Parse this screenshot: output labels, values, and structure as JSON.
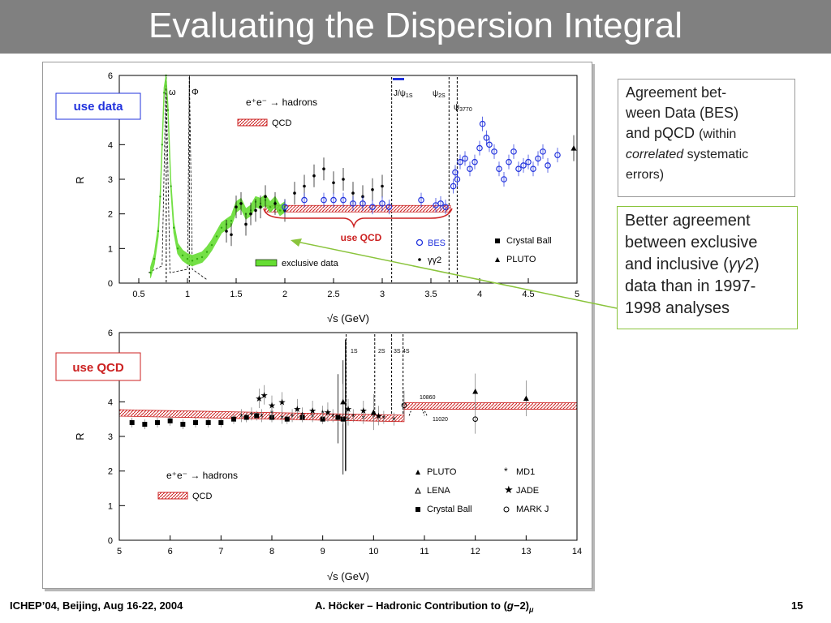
{
  "slide": {
    "title": "Evaluating the Dispersion Integral",
    "footer_left": "ICHEP’04, Beijing, Aug 16-22, 2004",
    "footer_center_prefix": "A. Höcker – Hadronic Contribution to (",
    "footer_center_g": "g",
    "footer_center_minus": "−2)",
    "footer_center_mu": "μ",
    "page_number": "15"
  },
  "notes": {
    "agreement_line1": "Agreement bet-",
    "agreement_line2": "ween Data (BES)",
    "agreement_line3": "and pQCD",
    "agreement_within": "(within",
    "agreement_correlated": "correlated",
    "agreement_systematic": "systematic",
    "agreement_errors": "errors)",
    "better_line1": "Better agreement",
    "better_line2": "between exclusive",
    "better_line3a": "and inclusive (",
    "better_gg": "γγ",
    "better_line3b": "2)",
    "better_line4": "data than in 1997-",
    "better_line5": "1998 analyses"
  },
  "colors": {
    "title_bar": "#808080",
    "qcd_band": "#cc2222",
    "exclusive": "#66dd33",
    "bes": "#2233dd",
    "arrow": "#8ac43c"
  },
  "chart_data": [
    {
      "type": "scatter",
      "ylabel": "R",
      "xlabel": "√s   (GeV)",
      "xlim": [
        0.3,
        5.0
      ],
      "ylim": [
        0,
        6
      ],
      "x_ticks": [
        "0.5",
        "1",
        "1.5",
        "2",
        "2.5",
        "3",
        "3.5",
        "4",
        "4.5",
        "5"
      ],
      "y_ticks": [
        "0",
        "1",
        "2",
        "3",
        "4",
        "5",
        "6"
      ],
      "label_box": "use data",
      "qcd_label": "use QCD",
      "process_label": "e⁺e⁻ → hadrons",
      "legend": {
        "qcd": "QCD",
        "exclusive": "exclusive data",
        "bes": "BES",
        "gg2": "γγ2",
        "crystal_ball": "Crystal Ball",
        "pluto": "PLUTO"
      },
      "resonances": [
        {
          "label": "ω",
          "x": 0.782
        },
        {
          "label": "Φ",
          "x": 1.019
        },
        {
          "label": "J/ψ",
          "sub": "1S",
          "x": 3.097
        },
        {
          "label": "ψ",
          "sub": "2S",
          "x": 3.686
        },
        {
          "label": "ψ",
          "sub": "3770",
          "x": 3.77
        }
      ],
      "qcd_band": {
        "x": [
          1.8,
          3.7
        ],
        "y": 2.15
      },
      "series": [
        {
          "name": "exclusive data",
          "x": [
            0.62,
            0.66,
            0.7,
            0.72,
            0.74,
            0.76,
            0.78,
            0.8,
            0.83,
            0.86,
            0.9,
            0.95,
            1.0,
            1.05,
            1.1,
            1.15,
            1.2,
            1.25,
            1.3,
            1.35,
            1.4,
            1.45,
            1.5,
            1.55,
            1.6,
            1.65,
            1.7,
            1.75,
            1.8,
            1.85,
            1.9,
            1.95,
            2.0
          ],
          "values": [
            0.3,
            0.7,
            1.5,
            2.5,
            4.0,
            5.5,
            6.0,
            5.0,
            2.8,
            1.6,
            1.0,
            0.8,
            0.7,
            0.65,
            0.7,
            0.75,
            0.9,
            1.1,
            1.35,
            1.6,
            1.7,
            1.8,
            2.2,
            2.3,
            2.0,
            2.1,
            2.35,
            2.3,
            2.4,
            2.2,
            2.35,
            2.1,
            2.2
          ]
        },
        {
          "name": "BES",
          "x": [
            2.0,
            2.2,
            2.4,
            2.5,
            2.6,
            2.7,
            2.8,
            2.9,
            3.0,
            3.07,
            3.4,
            3.55,
            3.6,
            3.65,
            3.73,
            3.75,
            3.77,
            3.8,
            3.85,
            3.9,
            3.95,
            4.0,
            4.03,
            4.07,
            4.1,
            4.15,
            4.2,
            4.25,
            4.3,
            4.35,
            4.4,
            4.45,
            4.5,
            4.55,
            4.6,
            4.65,
            4.7,
            4.8
          ],
          "values": [
            2.2,
            2.4,
            2.4,
            2.4,
            2.4,
            2.3,
            2.3,
            2.2,
            2.3,
            2.2,
            2.4,
            2.25,
            2.3,
            2.2,
            2.8,
            3.2,
            3.0,
            3.5,
            3.6,
            3.3,
            3.5,
            3.9,
            4.6,
            4.2,
            4.0,
            3.8,
            3.3,
            3.0,
            3.5,
            3.8,
            3.3,
            3.4,
            3.5,
            3.3,
            3.6,
            3.8,
            3.4,
            3.7
          ]
        },
        {
          "name": "γγ2",
          "x": [
            1.4,
            1.45,
            1.5,
            1.55,
            1.6,
            1.65,
            1.7,
            1.75,
            1.8,
            1.9,
            2.0,
            2.1,
            2.2,
            2.3,
            2.4,
            2.5,
            2.6,
            2.7,
            2.8,
            2.9,
            3.0
          ],
          "values": [
            1.5,
            1.4,
            2.2,
            2.3,
            1.7,
            2.0,
            2.1,
            2.2,
            2.5,
            2.3,
            2.1,
            2.6,
            2.8,
            3.1,
            3.3,
            2.9,
            3.0,
            2.6,
            2.5,
            2.7,
            2.8
          ]
        },
        {
          "name": "PLUTO",
          "x": [
            5.0
          ],
          "values": [
            3.9
          ]
        }
      ]
    },
    {
      "type": "scatter",
      "ylabel": "R",
      "xlabel": "√s   (GeV)",
      "xlim": [
        5,
        14
      ],
      "ylim": [
        0,
        6
      ],
      "x_ticks": [
        "5",
        "6",
        "7",
        "8",
        "9",
        "10",
        "11",
        "12",
        "13",
        "14"
      ],
      "y_ticks": [
        "0",
        "1",
        "2",
        "3",
        "4",
        "5",
        "6"
      ],
      "label_box": "use QCD",
      "process_label": "e⁺e⁻ → hadrons",
      "legend": {
        "qcd": "QCD",
        "pluto": "PLUTO",
        "md1": "MD1",
        "lena": "LENA",
        "jade": "JADE",
        "crystal_ball": "Crystal Ball",
        "markj": "MARK J"
      },
      "resonances": [
        {
          "label": "1S",
          "x": 9.46
        },
        {
          "label": "2S",
          "x": 10.023
        },
        {
          "label": "3S",
          "x": 10.355
        },
        {
          "label": "4S",
          "x": 10.58
        },
        {
          "label": "10860",
          "x": 10.86
        },
        {
          "label": "11020",
          "x": 11.02
        }
      ],
      "qcd_band": {
        "segments": [
          {
            "x": [
              5.0,
              10.6
            ],
            "y_start": 3.68,
            "y_end": 3.52
          },
          {
            "x": [
              10.6,
              14.0
            ],
            "y_start": 3.88,
            "y_end": 3.88
          }
        ]
      },
      "series": [
        {
          "name": "Crystal Ball",
          "x": [
            5.25,
            5.5,
            5.75,
            6.0,
            6.25,
            6.5,
            6.75,
            7.0,
            7.25,
            7.5,
            7.7,
            8.0,
            8.3,
            8.6,
            9.0,
            9.3,
            9.4
          ],
          "values": [
            3.4,
            3.35,
            3.4,
            3.45,
            3.35,
            3.4,
            3.4,
            3.4,
            3.5,
            3.55,
            3.6,
            3.55,
            3.5,
            3.55,
            3.5,
            3.55,
            3.5
          ]
        },
        {
          "name": "MD1",
          "x": [
            7.4,
            7.6,
            7.8,
            8.0,
            8.2,
            8.4,
            8.6,
            8.8,
            9.0,
            9.2,
            9.5,
            9.6,
            9.8,
            10.0,
            10.2,
            10.4
          ],
          "values": [
            3.6,
            3.65,
            3.6,
            3.7,
            3.55,
            3.6,
            3.65,
            3.6,
            3.7,
            3.6,
            3.5,
            3.6,
            3.55,
            3.6,
            3.55,
            3.5
          ]
        },
        {
          "name": "JADE",
          "x": [
            7.75,
            7.85,
            8.0,
            8.2,
            8.5,
            8.8,
            9.1,
            9.5,
            9.8,
            10.1
          ],
          "values": [
            4.1,
            4.2,
            3.9,
            4.0,
            3.8,
            3.75,
            3.7,
            3.8,
            3.75,
            3.6
          ]
        },
        {
          "name": "PLUTO",
          "x": [
            9.4,
            10.0,
            12.0,
            13.0
          ],
          "values": [
            4.0,
            3.7,
            4.3,
            4.1
          ]
        },
        {
          "name": "MARK J",
          "x": [
            10.6,
            12.0
          ],
          "values": [
            3.9,
            3.5
          ]
        }
      ]
    }
  ]
}
